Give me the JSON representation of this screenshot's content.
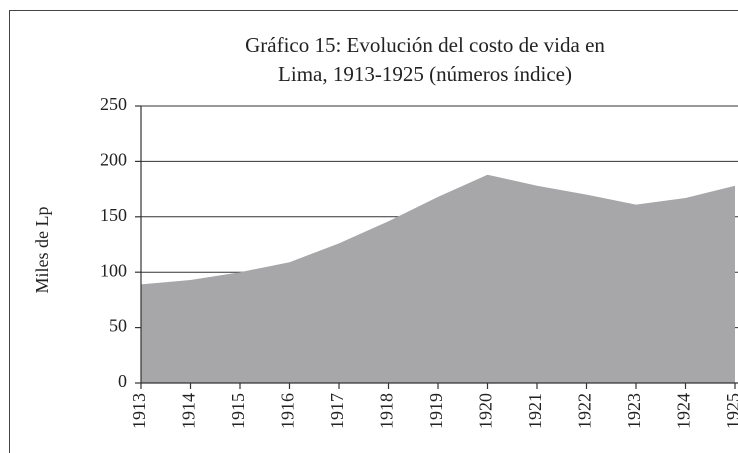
{
  "chart_data": {
    "type": "area",
    "title": [
      "Gráfico 15: Evolución del costo de vida en",
      "Lima, 1913-1925 (números índice)"
    ],
    "ylabel": "Miles de Lp",
    "categories": [
      "1913",
      "1914",
      "1915",
      "1916",
      "1917",
      "1918",
      "1919",
      "1920",
      "1921",
      "1922",
      "1923",
      "1924",
      "1925"
    ],
    "values": [
      89,
      93,
      100,
      109,
      126,
      146,
      168,
      188,
      178,
      170,
      161,
      167,
      178
    ],
    "color": "#a7a7a9",
    "ylim": [
      0,
      250
    ],
    "yticks": [
      0,
      50,
      100,
      150,
      200,
      250
    ],
    "grid": true
  }
}
